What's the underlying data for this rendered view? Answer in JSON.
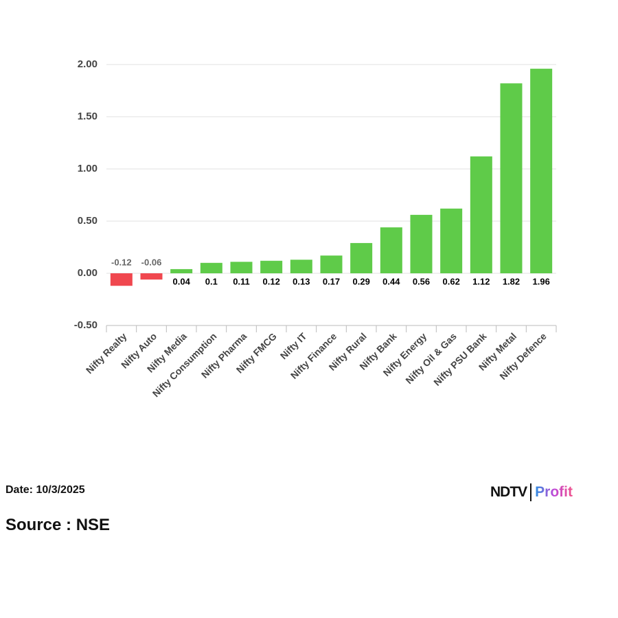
{
  "chart_data": {
    "type": "bar",
    "categories": [
      "Nifty Realty",
      "Nifty Auto",
      "Nifty Media",
      "Nifty Consumption",
      "Nifty Pharma",
      "Nifty FMCG",
      "Nifty IT",
      "Nifty Finance",
      "Nifty Rural",
      "Nifty Bank",
      "Nifty Energy",
      "Nifty Oil & Gas",
      "Nifty PSU Bank",
      "Nifty Metal",
      "Nifty Defence"
    ],
    "values": [
      -0.12,
      -0.06,
      0.04,
      0.1,
      0.11,
      0.12,
      0.13,
      0.17,
      0.29,
      0.44,
      0.56,
      0.62,
      1.12,
      1.82,
      1.96
    ],
    "positive_color": "#5fcb49",
    "negative_color": "#f0474f",
    "ylim": [
      -0.5,
      2.0
    ],
    "yticks": [
      {
        "value": -0.5,
        "label": "-0.50"
      },
      {
        "value": 0,
        "label": "0.00"
      },
      {
        "value": 0.5,
        "label": "0.50"
      },
      {
        "value": 1,
        "label": "1.00"
      },
      {
        "value": 1.5,
        "label": "1.50"
      },
      {
        "value": 2,
        "label": "2.00"
      }
    ],
    "grid": true
  },
  "footer": {
    "date": "Date: 10/3/2025",
    "source": "Source : NSE"
  },
  "logo": {
    "left": "NDTV",
    "right": "Profit"
  }
}
